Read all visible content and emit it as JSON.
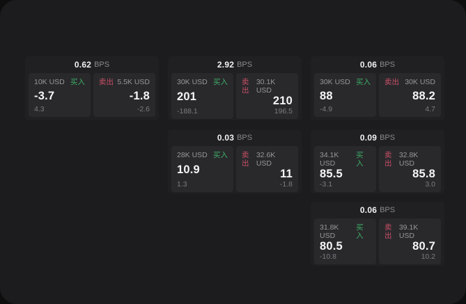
{
  "colors": {
    "outer_bg": "#0e0e0f",
    "window_bg": "#1c1c1e",
    "card_bg": "#202023",
    "panel_bg": "#29292c",
    "text_primary": "#f5f5f5",
    "text_secondary": "#97979a",
    "text_tertiary": "#7c7c80",
    "buy_green": "#3ead66",
    "sell_red": "#c84f66"
  },
  "labels": {
    "bps_unit": "BPS",
    "buy": "买入",
    "sell": "卖出"
  },
  "cards": [
    {
      "bps": "0.62",
      "buy": {
        "amount": "10K USD",
        "price": "-3.7",
        "delta": "4.3"
      },
      "sell": {
        "amount": "5.5K USD",
        "price": "-1.8",
        "delta": "-2.6"
      }
    },
    {
      "bps": "2.92",
      "buy": {
        "amount": "30K USD",
        "price": "201",
        "delta": "-188.1"
      },
      "sell": {
        "amount": "30.1K USD",
        "price": "210",
        "delta": "196.5"
      }
    },
    {
      "bps": "0.06",
      "buy": {
        "amount": "30K USD",
        "price": "88",
        "delta": "-4.9"
      },
      "sell": {
        "amount": "30K USD",
        "price": "88.2",
        "delta": "4.7"
      }
    },
    {
      "bps": "0.03",
      "buy": {
        "amount": "28K USD",
        "price": "10.9",
        "delta": "1.3"
      },
      "sell": {
        "amount": "32.6K USD",
        "price": "11",
        "delta": "-1.8"
      }
    },
    {
      "bps": "0.09",
      "buy": {
        "amount": "34.1K USD",
        "price": "85.5",
        "delta": "-3.1"
      },
      "sell": {
        "amount": "32.8K USD",
        "price": "85.8",
        "delta": "3.0"
      }
    },
    {
      "bps": "0.06",
      "buy": {
        "amount": "31.8K USD",
        "price": "80.5",
        "delta": "-10.8"
      },
      "sell": {
        "amount": "39.1K USD",
        "price": "80.7",
        "delta": "10.2"
      }
    }
  ]
}
